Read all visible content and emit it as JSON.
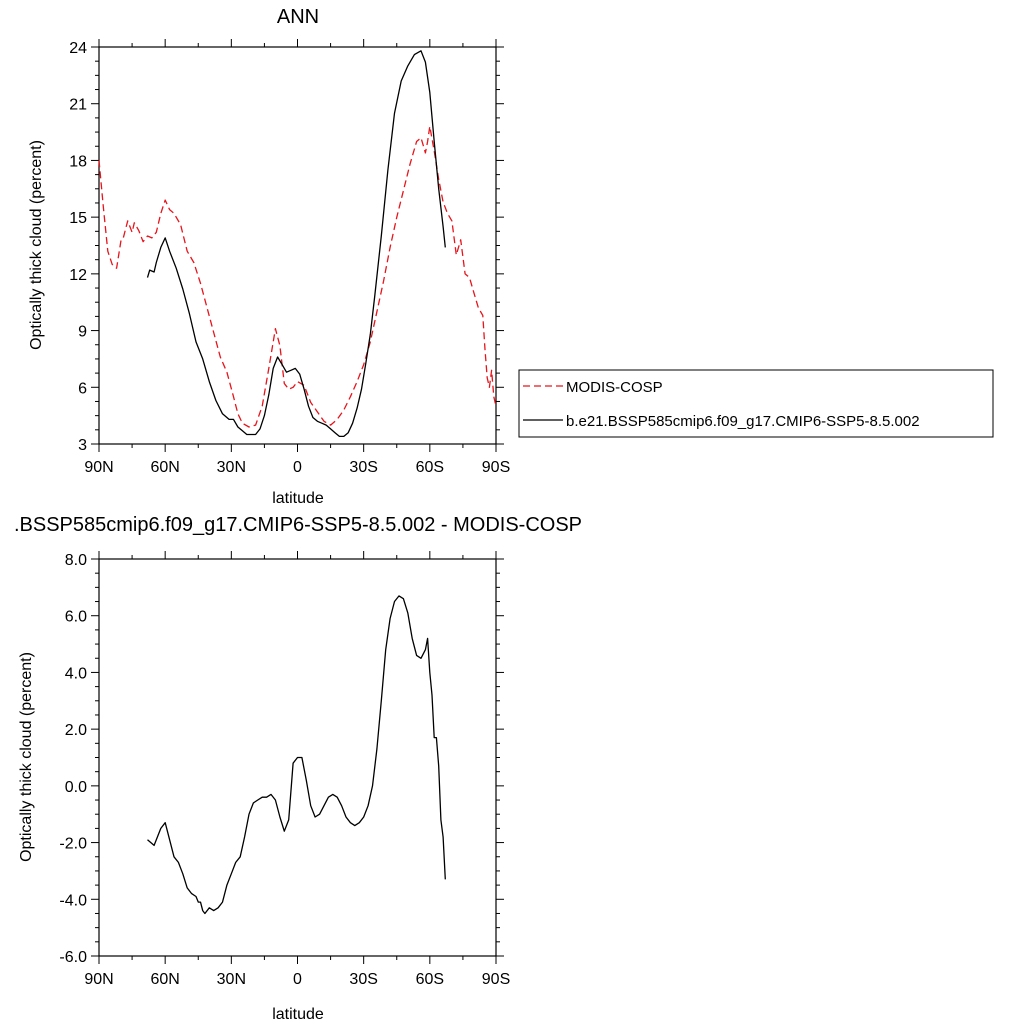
{
  "chart_data": [
    {
      "type": "line",
      "title": "ANN",
      "xlabel": "latitude",
      "ylabel": "Optically thick cloud (percent)",
      "xlim": [
        90,
        -90
      ],
      "ylim": [
        3,
        24
      ],
      "x_ticks": [
        90,
        60,
        30,
        0,
        -30,
        -60,
        -90
      ],
      "x_tick_labels": [
        "90N",
        "60N",
        "30N",
        "0",
        "30S",
        "60S",
        "90S"
      ],
      "y_ticks": [
        3,
        6,
        9,
        12,
        15,
        18,
        21,
        24
      ],
      "y_tick_labels": [
        "3",
        "6",
        "9",
        "12",
        "15",
        "18",
        "21",
        "24"
      ],
      "legend_position": "right",
      "series": [
        {
          "name": "MODIS-COSP",
          "color": "#e8141b",
          "dash": "dashed",
          "x": [
            90,
            88,
            86,
            84,
            82,
            80,
            79,
            77,
            75,
            74,
            72,
            70,
            68,
            66,
            64,
            62,
            60,
            58,
            56,
            53,
            50,
            47,
            44,
            41,
            38,
            35,
            32,
            29,
            27,
            25,
            22,
            19,
            16,
            13,
            10,
            8,
            6,
            4,
            2,
            0,
            -3,
            -6,
            -9,
            -12,
            -15,
            -18,
            -21,
            -24,
            -27,
            -30,
            -33,
            -36,
            -39,
            -42,
            -45,
            -48,
            -51,
            -54,
            -56,
            -58,
            -59,
            -60,
            -62,
            -64,
            -66,
            -68,
            -70,
            -72,
            -74,
            -76,
            -78,
            -80,
            -82,
            -84,
            -85,
            -86,
            -87,
            -88,
            -89,
            -90
          ],
          "y": [
            18.0,
            15.5,
            13.2,
            12.5,
            12.3,
            13.8,
            13.9,
            14.8,
            14.2,
            14.7,
            14.3,
            13.7,
            14.0,
            13.9,
            14.2,
            15.2,
            15.9,
            15.4,
            15.2,
            14.6,
            13.2,
            12.6,
            11.5,
            10.2,
            8.9,
            7.6,
            6.8,
            5.5,
            4.6,
            4.1,
            3.9,
            4.0,
            5.0,
            7.0,
            9.1,
            8.2,
            6.2,
            5.9,
            6.0,
            6.3,
            6.1,
            5.2,
            4.7,
            4.2,
            4.0,
            4.3,
            4.8,
            5.5,
            6.3,
            7.2,
            8.4,
            10.0,
            11.6,
            13.4,
            15.0,
            16.4,
            17.8,
            19.0,
            19.2,
            18.4,
            19.0,
            19.8,
            18.5,
            17.0,
            15.8,
            15.2,
            14.8,
            13.0,
            13.8,
            12.0,
            11.8,
            11.0,
            10.2,
            9.8,
            8.0,
            6.5,
            6.0,
            6.9,
            5.5,
            5.0
          ]
        },
        {
          "name": "b.e21.BSSP585cmip6.f09_g17.CMIP6-SSP5-8.5.002",
          "color": "#000000",
          "dash": "solid",
          "x": [
            68,
            67,
            65,
            64,
            62,
            60,
            58,
            55,
            52,
            49,
            46,
            43,
            40,
            37,
            34,
            31,
            29,
            27,
            25,
            23,
            21,
            19,
            17,
            15,
            13,
            11,
            9,
            7,
            5,
            3,
            1,
            -1,
            -3,
            -5,
            -7,
            -9,
            -11,
            -13,
            -15,
            -17,
            -19,
            -21,
            -23,
            -25,
            -27,
            -29,
            -31,
            -33,
            -35,
            -38,
            -41,
            -44,
            -47,
            -50,
            -53,
            -56,
            -58,
            -60,
            -62,
            -64,
            -66,
            -67
          ],
          "y": [
            11.8,
            12.2,
            12.1,
            12.6,
            13.4,
            13.9,
            13.2,
            12.3,
            11.2,
            9.9,
            8.4,
            7.5,
            6.3,
            5.3,
            4.6,
            4.3,
            4.3,
            3.9,
            3.7,
            3.5,
            3.5,
            3.5,
            3.8,
            4.5,
            5.6,
            7.0,
            7.6,
            7.2,
            6.8,
            6.9,
            7.0,
            6.7,
            5.9,
            5.0,
            4.4,
            4.2,
            4.1,
            4.0,
            3.8,
            3.6,
            3.4,
            3.4,
            3.6,
            4.1,
            4.9,
            5.9,
            7.3,
            8.8,
            10.8,
            14.0,
            17.5,
            20.5,
            22.2,
            23.0,
            23.6,
            23.8,
            23.2,
            21.6,
            19.0,
            16.5,
            14.5,
            13.4
          ]
        }
      ]
    },
    {
      "type": "line",
      "title": ".BSSP585cmip6.f09_g17.CMIP6-SSP5-8.5.002 - MODIS-COSP",
      "xlabel": "latitude",
      "ylabel": "Optically thick cloud (percent)",
      "xlim": [
        90,
        -90
      ],
      "ylim": [
        -6,
        8
      ],
      "x_ticks": [
        90,
        60,
        30,
        0,
        -30,
        -60,
        -90
      ],
      "x_tick_labels": [
        "90N",
        "60N",
        "30N",
        "0",
        "30S",
        "60S",
        "90S"
      ],
      "y_ticks": [
        -6,
        -4,
        -2,
        0,
        2,
        4,
        6,
        8
      ],
      "y_tick_labels": [
        "-6.0",
        "-4.0",
        "-2.0",
        "0.0",
        "2.0",
        "4.0",
        "6.0",
        "8.0"
      ],
      "series": [
        {
          "color": "#000000",
          "dash": "solid",
          "x": [
            68,
            65,
            62,
            60,
            58,
            56,
            54,
            52,
            50,
            48,
            46,
            45,
            44,
            43,
            42,
            40,
            38,
            36,
            34,
            32,
            30,
            28,
            26,
            24,
            22,
            20,
            18,
            16,
            14,
            12,
            10,
            8,
            6,
            4,
            2,
            0,
            -2,
            -4,
            -6,
            -8,
            -10,
            -12,
            -14,
            -16,
            -18,
            -20,
            -22,
            -24,
            -26,
            -28,
            -30,
            -32,
            -34,
            -36,
            -38,
            -40,
            -42,
            -44,
            -46,
            -48,
            -50,
            -52,
            -54,
            -56,
            -58,
            -59,
            -60,
            -61,
            -62,
            -63,
            -64,
            -65,
            -66,
            -67
          ],
          "y": [
            -1.9,
            -2.1,
            -1.5,
            -1.3,
            -1.9,
            -2.5,
            -2.7,
            -3.1,
            -3.6,
            -3.8,
            -3.9,
            -4.1,
            -4.1,
            -4.4,
            -4.5,
            -4.3,
            -4.4,
            -4.3,
            -4.1,
            -3.5,
            -3.1,
            -2.7,
            -2.5,
            -1.8,
            -1.0,
            -0.6,
            -0.5,
            -0.4,
            -0.4,
            -0.3,
            -0.5,
            -1.1,
            -1.6,
            -1.2,
            0.8,
            1.0,
            1.0,
            0.2,
            -0.7,
            -1.1,
            -1.0,
            -0.7,
            -0.4,
            -0.3,
            -0.4,
            -0.7,
            -1.1,
            -1.3,
            -1.4,
            -1.3,
            -1.1,
            -0.7,
            0.0,
            1.3,
            3.0,
            4.8,
            5.9,
            6.5,
            6.7,
            6.6,
            6.1,
            5.2,
            4.6,
            4.5,
            4.8,
            5.2,
            4.0,
            3.2,
            1.7,
            1.7,
            0.7,
            -1.2,
            -1.8,
            -3.3
          ]
        }
      ]
    }
  ],
  "legend": {
    "entries": [
      "MODIS-COSP",
      "b.e21.BSSP585cmip6.f09_g17.CMIP6-SSP5-8.5.002"
    ]
  }
}
